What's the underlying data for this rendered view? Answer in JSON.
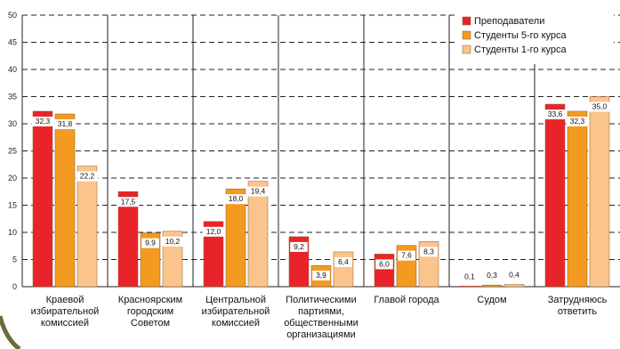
{
  "chart_data": {
    "type": "bar",
    "categories": [
      [
        "Краевой",
        "избирательной",
        "комиссией"
      ],
      [
        "Красноярским",
        "городским",
        "Советом"
      ],
      [
        "Центральной",
        "избирательной",
        "комиссией"
      ],
      [
        "Политическими",
        "партиями,",
        "общественными",
        "организациями"
      ],
      [
        "Главой города"
      ],
      [
        "Судом"
      ],
      [
        "Затрудняюсь",
        "ответить"
      ]
    ],
    "series": [
      {
        "name": "Преподаватели",
        "color": "#e8242a",
        "values": [
          32.3,
          17.5,
          12.0,
          9.2,
          6.0,
          0.1,
          33.6
        ],
        "labels": [
          "32,3",
          "17,5",
          "12,0",
          "9,2",
          "6,0",
          "0,1",
          "33,6"
        ]
      },
      {
        "name": "Студенты 5-го курса",
        "color": "#f39a21",
        "values": [
          31.8,
          9.9,
          18.0,
          3.9,
          7.6,
          0.3,
          32.3
        ],
        "labels": [
          "31,8",
          "9,9",
          "18,0",
          "3,9",
          "7,6",
          "0,3",
          "32,3"
        ]
      },
      {
        "name": "Студенты 1-го курса",
        "color": "#fbc48c",
        "values": [
          22.2,
          10.2,
          19.4,
          6.4,
          8.3,
          0.4,
          35.0
        ],
        "labels": [
          "22,2",
          "10,2",
          "19,4",
          "6,4",
          "8,3",
          "0,4",
          "35,0"
        ]
      }
    ],
    "yticks": [
      "0",
      "5",
      "10",
      "15",
      "20",
      "25",
      "30",
      "35",
      "40",
      "45",
      "50"
    ],
    "ylim": [
      0,
      50
    ],
    "grid": true,
    "legend_position": "top-right",
    "colors": {
      "grid": "#222222",
      "bar_stroke": "#8a5a2a",
      "label_box": "#ffffff"
    }
  }
}
